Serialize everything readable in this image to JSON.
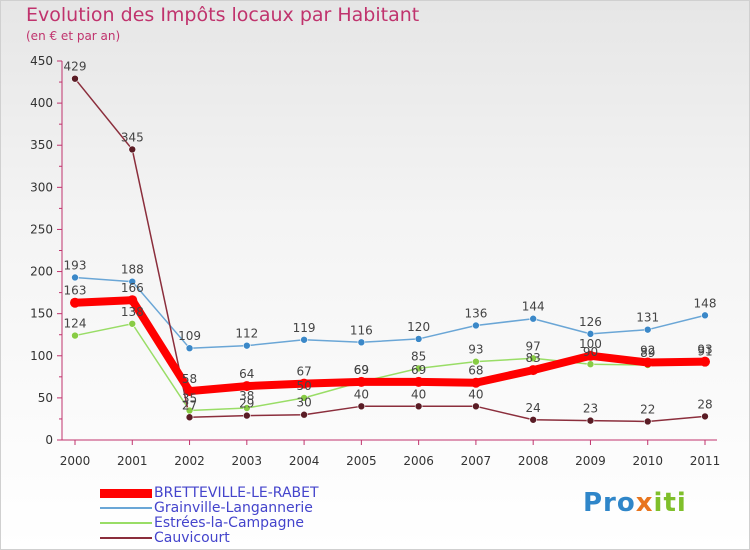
{
  "title": "Evolution des Impôts locaux par Habitant",
  "subtitle": "(en € et par an)",
  "logo": [
    "Pro",
    "x",
    "iti"
  ],
  "chart_data": {
    "type": "line",
    "title": "Evolution des Impôts locaux par Habitant",
    "subtitle": "(en € et par an)",
    "x": [
      "2000",
      "2001",
      "2002",
      "2003",
      "2004",
      "2005",
      "2006",
      "2007",
      "2008",
      "2009",
      "2010",
      "2011"
    ],
    "ylim": [
      0,
      450
    ],
    "yticks": [
      0,
      50,
      100,
      150,
      200,
      250,
      300,
      350,
      400,
      450
    ],
    "grid": false,
    "legend_position": "bottom-left",
    "series": [
      {
        "name": "BRETTEVILLE-LE-RABET",
        "color": "#ff0000",
        "values": [
          163,
          166,
          58,
          64,
          67,
          69,
          69,
          68,
          83,
          100,
          92,
          93
        ]
      },
      {
        "name": "Grainville-Langannerie",
        "color": "#6aa6d6",
        "values": [
          193,
          188,
          109,
          112,
          119,
          116,
          120,
          136,
          144,
          126,
          131,
          148
        ]
      },
      {
        "name": "Estrées-la-Campagne",
        "color": "#99dd66",
        "values": [
          124,
          138,
          35,
          38,
          50,
          69,
          85,
          93,
          97,
          90,
          89,
          91
        ]
      },
      {
        "name": "Cauvicourt",
        "color": "#8b2e3c",
        "values": [
          429,
          345,
          27,
          29,
          30,
          40,
          40,
          40,
          24,
          23,
          22,
          28
        ]
      }
    ]
  }
}
